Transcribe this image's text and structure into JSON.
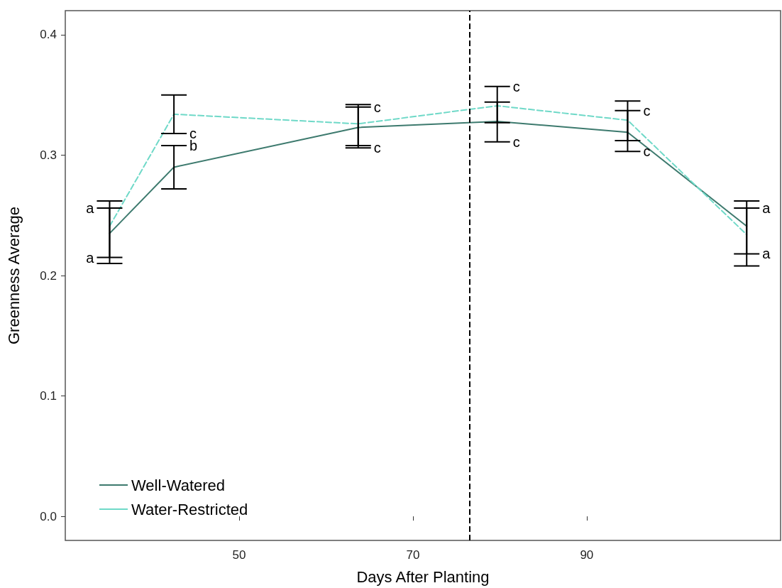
{
  "chart_data": {
    "type": "line",
    "xlabel": "Days After Planting",
    "ylabel": "Greenness Average",
    "x": [
      35.1,
      42.5,
      63.7,
      79.7,
      94.7,
      108.4
    ],
    "series": [
      {
        "name": "Well-Watered",
        "color": "#3d7a6e",
        "line_style": "solid",
        "values": [
          0.235,
          0.29,
          0.323,
          0.328,
          0.319,
          0.241
        ],
        "errors": [
          [
            0.215,
            0.256
          ],
          [
            0.272,
            0.308
          ],
          [
            0.306,
            0.34
          ],
          [
            0.311,
            0.344
          ],
          [
            0.303,
            0.337
          ],
          [
            0.218,
            0.262
          ]
        ]
      },
      {
        "name": "Water-Restricted",
        "color": "#6fd9c8",
        "line_style": "dashed",
        "values": [
          0.241,
          0.334,
          0.326,
          0.341,
          0.329,
          0.234
        ],
        "errors": [
          [
            0.21,
            0.262
          ],
          [
            0.318,
            0.35
          ],
          [
            0.308,
            0.342
          ],
          [
            0.327,
            0.357
          ],
          [
            0.312,
            0.345
          ],
          [
            0.208,
            0.256
          ]
        ]
      }
    ],
    "xlim": [
      30,
      112.3
    ],
    "xticks": [
      50,
      70,
      90
    ],
    "ylim": [
      -0.02,
      0.42
    ],
    "yticks": [
      {
        "value": 0,
        "label": "0.0"
      },
      0.1,
      0.2,
      0.3,
      0.4
    ],
    "grid": false,
    "legend": "bottom left",
    "marker": "none",
    "ref_lines": [
      {
        "axis": "x",
        "value": 76.5,
        "color": "#000000",
        "line_style": "dashed"
      }
    ],
    "annotations": [
      {
        "text": "a",
        "x": 35.1,
        "y": 0.256
      },
      {
        "text": "a",
        "x": 35.1,
        "y": 0.215
      },
      {
        "text": "c",
        "x": 42.5,
        "y": 0.318
      },
      {
        "text": "b",
        "x": 42.5,
        "y": 0.308
      },
      {
        "text": "c",
        "x": 63.7,
        "y": 0.34
      },
      {
        "text": "c",
        "x": 63.7,
        "y": 0.306
      },
      {
        "text": "c",
        "x": 79.7,
        "y": 0.357
      },
      {
        "text": "c",
        "x": 79.7,
        "y": 0.311
      },
      {
        "text": "c",
        "x": 94.7,
        "y": 0.337
      },
      {
        "text": "c",
        "x": 94.7,
        "y": 0.303
      },
      {
        "text": "a",
        "x": 108.4,
        "y": 0.256
      },
      {
        "text": "a",
        "x": 108.4,
        "y": 0.218
      }
    ]
  }
}
